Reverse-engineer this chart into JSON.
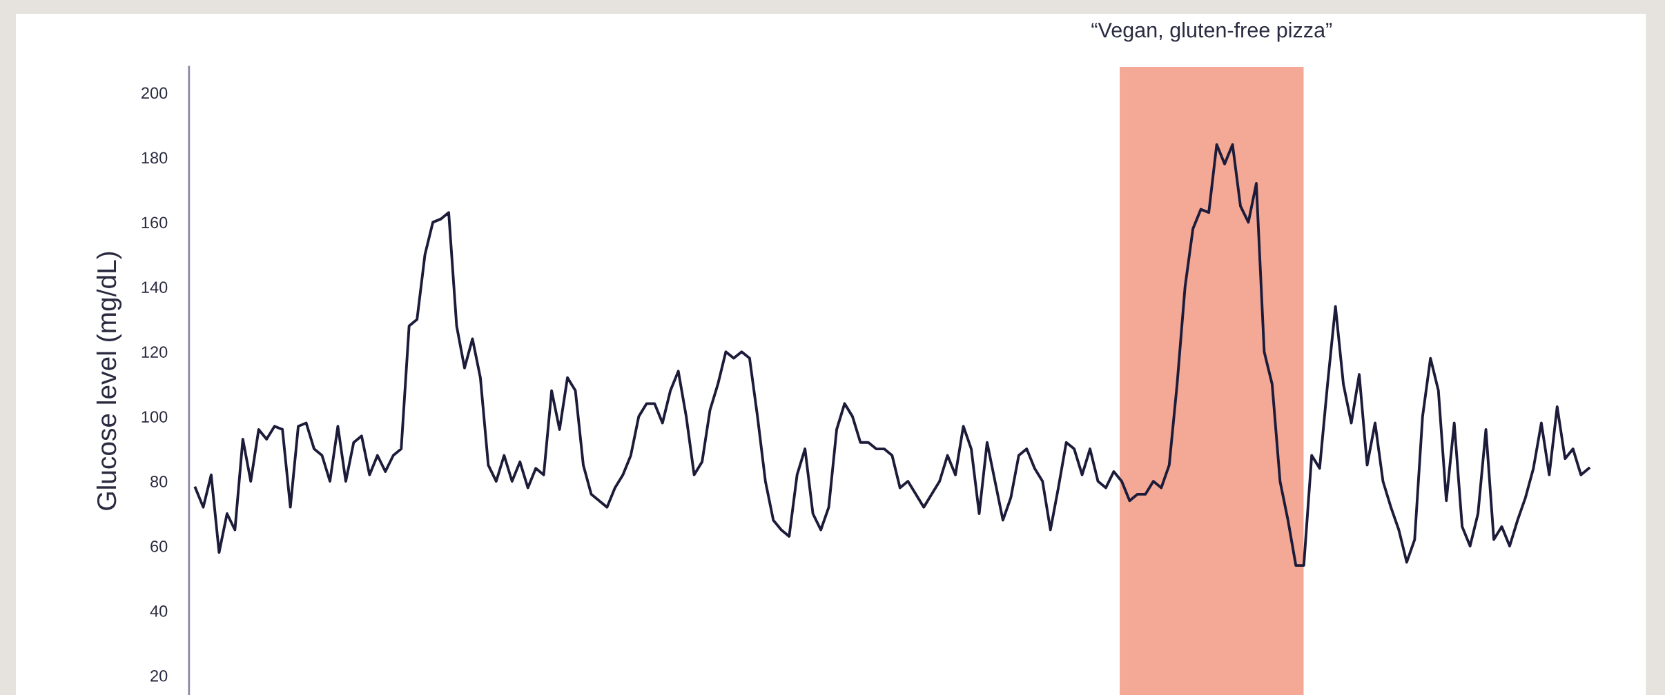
{
  "chart_data": {
    "type": "line",
    "ylabel": "Glucose level (mg/dL)",
    "categories": [
      null,
      null,
      null,
      null,
      null,
      null,
      null,
      null,
      null,
      null,
      null,
      null,
      null,
      null,
      null,
      null,
      null,
      null,
      null,
      null,
      null,
      null,
      null,
      null,
      null,
      null,
      null,
      null,
      null,
      null,
      null,
      null,
      null,
      null,
      null,
      null,
      null,
      null,
      null,
      null,
      null,
      null,
      null,
      null,
      null,
      null,
      null,
      null,
      null,
      null,
      null,
      null,
      null,
      null,
      null,
      null,
      null,
      null,
      null,
      null,
      null,
      null,
      null,
      null,
      null,
      null,
      null,
      null,
      null,
      null,
      null,
      null,
      null,
      null,
      null,
      null,
      null,
      null,
      null,
      null,
      null,
      null,
      null,
      null,
      null,
      null,
      null,
      null,
      null,
      null,
      null,
      null,
      null,
      null,
      null,
      null,
      null,
      null,
      null,
      null,
      null,
      null,
      null,
      null,
      null,
      null,
      null,
      null,
      null,
      null,
      null,
      null,
      null,
      null,
      null,
      null,
      null,
      null,
      null,
      null,
      null,
      null,
      null,
      null,
      null,
      null,
      null,
      null,
      null,
      null,
      null,
      null,
      null,
      null,
      null,
      null,
      null,
      null,
      null,
      null,
      null,
      null,
      null,
      null,
      null,
      null,
      null,
      null,
      null,
      null,
      null,
      null,
      null,
      null,
      null,
      null,
      null,
      null,
      null,
      null,
      null,
      null,
      null,
      null,
      null,
      null,
      null,
      null,
      null,
      null,
      null,
      null,
      null,
      null,
      null,
      null,
      null
    ],
    "series": [
      {
        "color": "#1c1c3a",
        "values": [
          78,
          72,
          82,
          58,
          70,
          65,
          93,
          80,
          96,
          93,
          97,
          96,
          72,
          97,
          98,
          90,
          88,
          80,
          97,
          80,
          92,
          94,
          82,
          88,
          83,
          88,
          90,
          128,
          130,
          150,
          160,
          161,
          163,
          128,
          115,
          124,
          112,
          85,
          80,
          88,
          80,
          86,
          78,
          84,
          82,
          108,
          96,
          112,
          108,
          85,
          76,
          74,
          72,
          78,
          82,
          88,
          100,
          104,
          104,
          98,
          108,
          114,
          100,
          82,
          86,
          102,
          110,
          120,
          118,
          120,
          118,
          100,
          80,
          68,
          65,
          63,
          82,
          90,
          70,
          65,
          72,
          96,
          104,
          100,
          92,
          92,
          90,
          90,
          88,
          78,
          80,
          76,
          72,
          76,
          80,
          88,
          82,
          97,
          90,
          70,
          92,
          80,
          68,
          75,
          88,
          90,
          84,
          80,
          65,
          78,
          92,
          90,
          82,
          90,
          80,
          78,
          83,
          80,
          74,
          76,
          76,
          80,
          78,
          85,
          110,
          140,
          158,
          164,
          163,
          184,
          178,
          184,
          165,
          160,
          172,
          120,
          110,
          80,
          68,
          54,
          54,
          88,
          84,
          110,
          134,
          110,
          98,
          113,
          85,
          98,
          80,
          72,
          65,
          55,
          62,
          100,
          118,
          108,
          74,
          98,
          66,
          60,
          70,
          96,
          62,
          66,
          60,
          68,
          75,
          84,
          98,
          82,
          103,
          87,
          90,
          82,
          84
        ]
      }
    ],
    "ylim": [
      14,
      208
    ],
    "yticks": [
      20,
      40,
      60,
      80,
      100,
      120,
      140,
      160,
      180,
      200
    ],
    "annotations": [
      "“Vegan, gluten-free pizza”"
    ],
    "grid": false,
    "legend": false,
    "marker": "none",
    "line_style": "solid"
  }
}
